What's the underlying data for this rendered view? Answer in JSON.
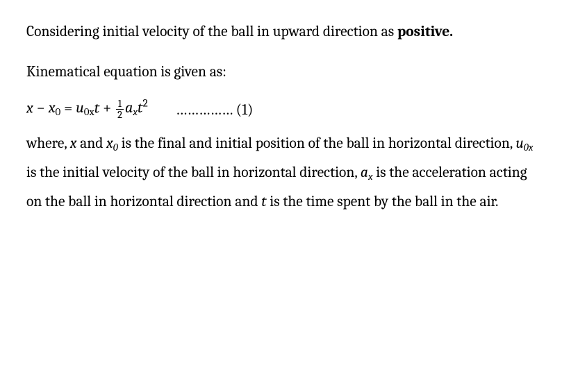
{
  "colors": {
    "text": "#000000",
    "background": "#ffffff"
  },
  "typography": {
    "body_font": "Cambria / Georgia serif",
    "body_size_pt": 16,
    "line_height": 1.95,
    "bold_word_weight": 700
  },
  "p1": {
    "before": "Considering initial velocity of the ball in upward direction as ",
    "bold": "positive."
  },
  "p2": "Kinematical equation is given as:",
  "equation": {
    "lhs_x": "x",
    "minus": " − ",
    "x0_base": "x",
    "x0_sub": "0",
    "equals": " = ",
    "u_base": "u",
    "u_sub": "0x",
    "t1": "t",
    "plus": " + ",
    "frac_num": "1",
    "frac_den": "2",
    "a_base": "a",
    "a_sub": "x",
    "t2": "t",
    "t2_pow": "2",
    "dots": "……………",
    "num_open": " (",
    "num": "1",
    "num_close": ")"
  },
  "p3": {
    "t1": "where, ",
    "sym_x": "x",
    "t2": " and ",
    "sym_x0_base": "x",
    "sym_x0_sub": "0",
    "t3": " is the final and initial position of the ball in horizontal direction, ",
    "sym_u_base": "u",
    "sym_u_sub": "0x",
    "t4": " is the initial velocity of the ball in horizontal direction, ",
    "sym_a_base": "a",
    "sym_a_sub": "x",
    "t5": " is the acceleration acting on the ball in horizontal direction and ",
    "sym_t": "t",
    "t6": " is the time spent by the ball in the air."
  }
}
